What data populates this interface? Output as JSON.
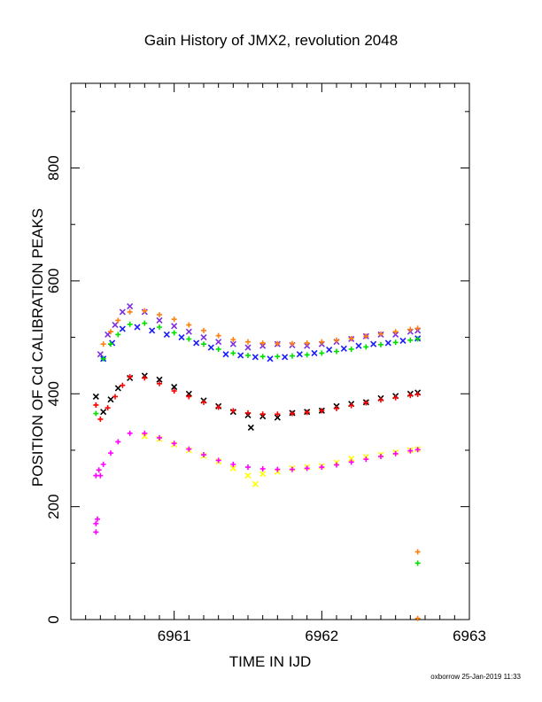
{
  "page": {
    "title": "Gain History of JMX2, revolution 2048",
    "footer": "oxborrow 25-Jan-2019 11:33"
  },
  "chart_data": {
    "type": "scatter",
    "title": "Gain History of JMX2, revolution 2048",
    "xlabel": "TIME IN IJD",
    "ylabel": "POSITION OF Cd CALIBRATION PEAKS",
    "xlim": [
      6960.3,
      6963
    ],
    "ylim": [
      0,
      950
    ],
    "xticks": [
      6961,
      6962,
      6963
    ],
    "yticks": [
      0,
      200,
      400,
      600,
      800
    ],
    "grid": false,
    "legend": "none",
    "series": [
      {
        "color": "#7b2fe0",
        "marker": "x",
        "points": [
          [
            6960.5,
            470
          ],
          [
            6960.55,
            505
          ],
          [
            6960.6,
            522
          ],
          [
            6960.65,
            545
          ],
          [
            6960.7,
            555
          ],
          [
            6960.8,
            545
          ],
          [
            6960.9,
            530
          ],
          [
            6961.0,
            520
          ],
          [
            6961.1,
            510
          ],
          [
            6961.2,
            500
          ],
          [
            6961.3,
            492
          ],
          [
            6961.4,
            488
          ],
          [
            6961.5,
            482
          ],
          [
            6961.6,
            485
          ],
          [
            6961.7,
            488
          ],
          [
            6961.8,
            486
          ],
          [
            6961.9,
            485
          ],
          [
            6962.0,
            488
          ],
          [
            6962.1,
            492
          ],
          [
            6962.2,
            497
          ],
          [
            6962.3,
            502
          ],
          [
            6962.4,
            505
          ],
          [
            6962.5,
            505
          ],
          [
            6962.6,
            510
          ],
          [
            6962.65,
            512
          ]
        ]
      },
      {
        "color": "#1a1aff",
        "marker": "x",
        "points": [
          [
            6960.52,
            462
          ],
          [
            6960.58,
            490
          ],
          [
            6960.65,
            515
          ],
          [
            6960.75,
            518
          ],
          [
            6960.85,
            512
          ],
          [
            6960.95,
            505
          ],
          [
            6961.05,
            500
          ],
          [
            6961.15,
            490
          ],
          [
            6961.25,
            482
          ],
          [
            6961.35,
            470
          ],
          [
            6961.45,
            468
          ],
          [
            6961.55,
            465
          ],
          [
            6961.65,
            462
          ],
          [
            6961.75,
            465
          ],
          [
            6961.85,
            470
          ],
          [
            6961.95,
            472
          ],
          [
            6962.05,
            478
          ],
          [
            6962.15,
            480
          ],
          [
            6962.25,
            485
          ],
          [
            6962.35,
            488
          ],
          [
            6962.45,
            490
          ],
          [
            6962.55,
            494
          ],
          [
            6962.65,
            498
          ]
        ]
      },
      {
        "color": "#ff7f0e",
        "marker": "+",
        "points": [
          [
            6960.47,
            380
          ],
          [
            6960.52,
            488
          ],
          [
            6960.57,
            510
          ],
          [
            6960.62,
            530
          ],
          [
            6960.7,
            545
          ],
          [
            6960.8,
            547
          ],
          [
            6960.9,
            540
          ],
          [
            6961.0,
            532
          ],
          [
            6961.1,
            522
          ],
          [
            6961.2,
            512
          ],
          [
            6961.3,
            503
          ],
          [
            6961.4,
            496
          ],
          [
            6961.5,
            492
          ],
          [
            6961.6,
            490
          ],
          [
            6961.7,
            489
          ],
          [
            6961.8,
            489
          ],
          [
            6961.9,
            490
          ],
          [
            6962.0,
            492
          ],
          [
            6962.1,
            495
          ],
          [
            6962.2,
            498
          ],
          [
            6962.3,
            502
          ],
          [
            6962.4,
            506
          ],
          [
            6962.5,
            510
          ],
          [
            6962.6,
            514
          ],
          [
            6962.65,
            516
          ],
          [
            6962.65,
            120
          ],
          [
            6962.65,
            2
          ]
        ]
      },
      {
        "color": "#00e000",
        "marker": "+",
        "points": [
          [
            6960.47,
            365
          ],
          [
            6960.52,
            462
          ],
          [
            6960.57,
            488
          ],
          [
            6960.62,
            505
          ],
          [
            6960.7,
            523
          ],
          [
            6960.8,
            525
          ],
          [
            6960.9,
            518
          ],
          [
            6961.0,
            508
          ],
          [
            6961.1,
            497
          ],
          [
            6961.2,
            488
          ],
          [
            6961.3,
            479
          ],
          [
            6961.4,
            472
          ],
          [
            6961.5,
            468
          ],
          [
            6961.6,
            466
          ],
          [
            6961.7,
            466
          ],
          [
            6961.8,
            467
          ],
          [
            6961.9,
            469
          ],
          [
            6962.0,
            472
          ],
          [
            6962.1,
            475
          ],
          [
            6962.2,
            479
          ],
          [
            6962.3,
            483
          ],
          [
            6962.4,
            487
          ],
          [
            6962.5,
            491
          ],
          [
            6962.6,
            495
          ],
          [
            6962.65,
            497
          ],
          [
            6962.65,
            100
          ]
        ]
      },
      {
        "color": "#000000",
        "marker": "x",
        "points": [
          [
            6960.47,
            395
          ],
          [
            6960.52,
            368
          ],
          [
            6960.57,
            390
          ],
          [
            6960.62,
            410
          ],
          [
            6960.7,
            428
          ],
          [
            6960.8,
            432
          ],
          [
            6960.9,
            425
          ],
          [
            6961.0,
            412
          ],
          [
            6961.1,
            400
          ],
          [
            6961.2,
            388
          ],
          [
            6961.3,
            378
          ],
          [
            6961.4,
            368
          ],
          [
            6961.5,
            362
          ],
          [
            6961.52,
            340
          ],
          [
            6961.6,
            360
          ],
          [
            6961.7,
            358
          ],
          [
            6961.8,
            366
          ],
          [
            6961.9,
            368
          ],
          [
            6962.0,
            370
          ],
          [
            6962.1,
            378
          ],
          [
            6962.2,
            382
          ],
          [
            6962.3,
            385
          ],
          [
            6962.4,
            392
          ],
          [
            6962.5,
            396
          ],
          [
            6962.6,
            400
          ],
          [
            6962.65,
            402
          ]
        ]
      },
      {
        "color": "#ff0000",
        "marker": "+",
        "points": [
          [
            6960.47,
            380
          ],
          [
            6960.5,
            355
          ],
          [
            6960.55,
            375
          ],
          [
            6960.6,
            395
          ],
          [
            6960.65,
            415
          ],
          [
            6960.7,
            430
          ],
          [
            6960.8,
            428
          ],
          [
            6960.9,
            418
          ],
          [
            6961.0,
            405
          ],
          [
            6961.1,
            395
          ],
          [
            6961.2,
            385
          ],
          [
            6961.3,
            376
          ],
          [
            6961.4,
            370
          ],
          [
            6961.5,
            366
          ],
          [
            6961.6,
            364
          ],
          [
            6961.7,
            364
          ],
          [
            6961.8,
            365
          ],
          [
            6961.9,
            367
          ],
          [
            6962.0,
            370
          ],
          [
            6962.1,
            374
          ],
          [
            6962.2,
            379
          ],
          [
            6962.3,
            384
          ],
          [
            6962.4,
            389
          ],
          [
            6962.5,
            393
          ],
          [
            6962.6,
            397
          ],
          [
            6962.65,
            399
          ]
        ]
      },
      {
        "color": "#ffff00",
        "marker": "x",
        "points": [
          [
            6960.8,
            325
          ],
          [
            6960.9,
            320
          ],
          [
            6961.0,
            310
          ],
          [
            6961.1,
            300
          ],
          [
            6961.2,
            290
          ],
          [
            6961.3,
            280
          ],
          [
            6961.4,
            268
          ],
          [
            6961.5,
            255
          ],
          [
            6961.55,
            240
          ],
          [
            6961.6,
            258
          ],
          [
            6961.7,
            262
          ],
          [
            6961.8,
            268
          ],
          [
            6961.9,
            270
          ],
          [
            6962.0,
            272
          ],
          [
            6962.1,
            278
          ],
          [
            6962.2,
            285
          ],
          [
            6962.3,
            288
          ],
          [
            6962.4,
            292
          ],
          [
            6962.5,
            296
          ],
          [
            6962.6,
            300
          ],
          [
            6962.65,
            302
          ]
        ]
      },
      {
        "color": "#ff00ff",
        "marker": "+",
        "points": [
          [
            6960.47,
            155
          ],
          [
            6960.47,
            170
          ],
          [
            6960.48,
            178
          ],
          [
            6960.47,
            255
          ],
          [
            6960.49,
            265
          ],
          [
            6960.5,
            255
          ],
          [
            6960.52,
            275
          ],
          [
            6960.57,
            295
          ],
          [
            6960.62,
            315
          ],
          [
            6960.7,
            330
          ],
          [
            6960.8,
            330
          ],
          [
            6960.9,
            322
          ],
          [
            6961.0,
            312
          ],
          [
            6961.1,
            302
          ],
          [
            6961.2,
            292
          ],
          [
            6961.3,
            282
          ],
          [
            6961.4,
            275
          ],
          [
            6961.5,
            270
          ],
          [
            6961.6,
            267
          ],
          [
            6961.7,
            266
          ],
          [
            6961.8,
            266
          ],
          [
            6961.9,
            268
          ],
          [
            6962.0,
            270
          ],
          [
            6962.1,
            274
          ],
          [
            6962.2,
            279
          ],
          [
            6962.3,
            284
          ],
          [
            6962.4,
            289
          ],
          [
            6962.5,
            294
          ],
          [
            6962.6,
            299
          ],
          [
            6962.65,
            301
          ]
        ]
      }
    ]
  }
}
